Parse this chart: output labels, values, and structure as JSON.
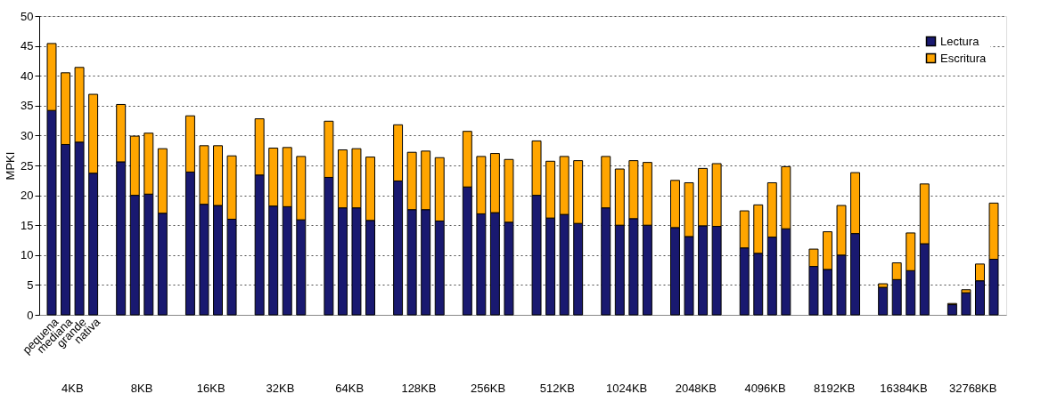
{
  "chart_data": {
    "type": "bar",
    "stacked": true,
    "ylabel": "MPKI",
    "categories": [
      "pequena",
      "mediana",
      "grande",
      "nativa",
      null,
      null,
      null,
      null,
      null,
      null,
      null,
      null,
      null,
      null,
      null,
      null,
      null,
      null,
      null,
      null,
      null,
      null,
      null,
      null,
      null,
      null,
      null,
      null,
      null,
      null,
      null,
      null,
      null,
      null,
      null,
      null,
      null,
      null,
      null,
      null,
      null,
      null,
      null,
      null,
      null,
      null,
      null,
      null,
      null,
      null,
      null,
      null,
      null,
      null,
      null,
      null,
      null,
      null,
      null,
      null,
      null,
      null,
      null,
      null,
      null,
      null,
      null,
      null,
      null
    ],
    "annotations": [
      "4KB",
      "8KB",
      "16KB",
      "32KB",
      "64KB",
      "128KB",
      "256KB",
      "512KB",
      "1024KB",
      "2048KB",
      "4096KB",
      "8192KB",
      "16384KB",
      "32768KB"
    ],
    "series": [
      {
        "name": "Lectura",
        "color": "#191970",
        "values": [
          34.2,
          28.5,
          28.9,
          23.7,
          null,
          25.6,
          20.0,
          20.2,
          17.0,
          null,
          23.9,
          18.5,
          18.3,
          16.0,
          null,
          23.4,
          18.2,
          18.1,
          15.9,
          null,
          23.0,
          17.9,
          17.9,
          15.8,
          null,
          22.4,
          17.6,
          17.6,
          15.7,
          null,
          21.4,
          16.9,
          17.1,
          15.5,
          null,
          20.0,
          16.2,
          16.8,
          15.3,
          null,
          17.9,
          15.0,
          16.1,
          15.0,
          null,
          14.6,
          13.1,
          14.9,
          14.8,
          null,
          11.2,
          10.3,
          13.0,
          14.4,
          null,
          8.1,
          7.6,
          10.0,
          13.6,
          null,
          4.6,
          5.9,
          7.4,
          11.9,
          null,
          1.7,
          3.7,
          5.7,
          9.3
        ]
      },
      {
        "name": "Escritura",
        "color": "#ffa500",
        "values": [
          11.2,
          12.0,
          12.5,
          13.2,
          null,
          9.6,
          9.9,
          10.2,
          10.8,
          null,
          9.4,
          9.8,
          10.0,
          10.6,
          null,
          9.4,
          9.7,
          9.9,
          10.6,
          null,
          9.4,
          9.7,
          9.9,
          10.6,
          null,
          9.4,
          9.6,
          9.8,
          10.6,
          null,
          9.3,
          9.6,
          9.9,
          10.5,
          null,
          9.1,
          9.5,
          9.7,
          10.5,
          null,
          8.6,
          9.4,
          9.7,
          10.5,
          null,
          7.9,
          9.0,
          9.6,
          10.5,
          null,
          6.2,
          8.1,
          9.1,
          10.4,
          null,
          2.9,
          6.3,
          8.3,
          10.2,
          null,
          0.6,
          2.8,
          6.3,
          10.0,
          null,
          0.2,
          0.5,
          2.8,
          9.4
        ]
      }
    ],
    "ylim": [
      0,
      50
    ],
    "yticks": [
      0,
      5,
      10,
      15,
      20,
      25,
      30,
      35,
      40,
      45,
      50
    ],
    "grid": "y",
    "legend": "top right"
  }
}
